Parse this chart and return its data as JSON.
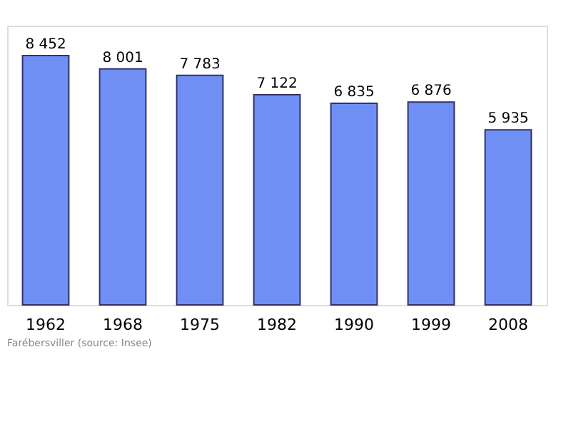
{
  "chart_data": {
    "type": "bar",
    "categories": [
      "1962",
      "1968",
      "1975",
      "1982",
      "1990",
      "1999",
      "2008"
    ],
    "values": [
      8452,
      8001,
      7783,
      7122,
      6835,
      6876,
      5935
    ],
    "value_labels": [
      "8 452",
      "8 001",
      "7 783",
      "7 122",
      "6 835",
      "6 876",
      "5 935"
    ],
    "color": "#6f8ff5",
    "grid": false,
    "annotations": [
      "Farébersviller    (source: Insee)"
    ]
  }
}
